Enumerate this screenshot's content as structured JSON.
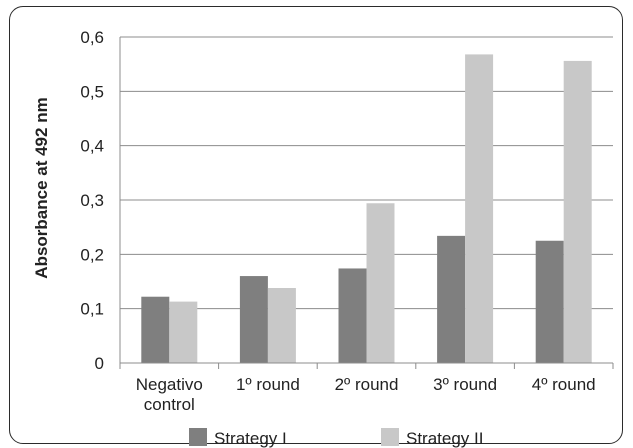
{
  "chart_data": {
    "type": "bar",
    "categories": [
      [
        "Negativo",
        "control"
      ],
      [
        "1º round"
      ],
      [
        "2º round"
      ],
      [
        "3º round"
      ],
      [
        "4º round"
      ]
    ],
    "series": [
      {
        "name": "Strategy I",
        "color": "#7f7f7f",
        "values": [
          0.122,
          0.16,
          0.174,
          0.234,
          0.225
        ]
      },
      {
        "name": "Strategy II",
        "color": "#c8c8c8",
        "values": [
          0.113,
          0.138,
          0.294,
          0.568,
          0.556
        ]
      }
    ],
    "ylabel": "Absorbance at 492 nm",
    "xlabel": "",
    "ylim": [
      0,
      0.6
    ],
    "yticks": [
      "0",
      "0,1",
      "0,2",
      "0,3",
      "0,4",
      "0,5",
      "0,6"
    ],
    "grid": true,
    "legend_position": "bottom"
  }
}
